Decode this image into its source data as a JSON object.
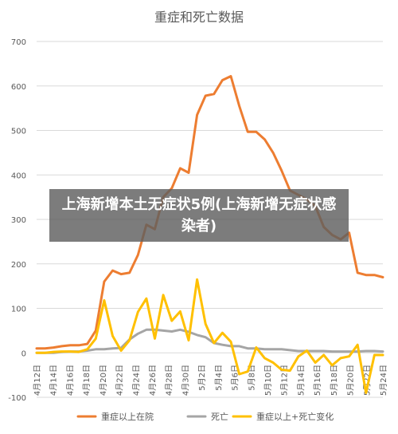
{
  "colors": {
    "hospitalized": "#ED7D31",
    "deaths": "#A5A5A5",
    "change": "#FFC000",
    "grid": "#D9D9D9",
    "text": "#595959",
    "overlay_bg": "#5F5F5F",
    "overlay_text": "#FFFFFF"
  },
  "overlay": {
    "headline": "上海新增本土无症状5例(上海新增无症状感染者)"
  },
  "chart_data": {
    "type": "line",
    "title": "重症和死亡数据",
    "ylim": [
      -100,
      700
    ],
    "yticks": [
      -100,
      0,
      100,
      200,
      300,
      400,
      500,
      600,
      700
    ],
    "ytick_labels": [
      "-100",
      "0",
      "100",
      "200",
      "300",
      "400",
      "500",
      "600",
      "700"
    ],
    "xtick_labels": [
      "4月12日",
      "4月14日",
      "4月16日",
      "4月18日",
      "4月20日",
      "4月22日",
      "4月24日",
      "4月26日",
      "4月28日",
      "4月30日",
      "5月2日",
      "5月4日",
      "5月6日",
      "5月8日",
      "5月10日",
      "5月12日",
      "5月14日",
      "5月16日",
      "5月18日",
      "5月20日",
      "5月22日",
      "5月24日"
    ],
    "grid": true,
    "legend_position": "bottom",
    "series": [
      {
        "name": "重症以上在院",
        "values": [
          10,
          10,
          12,
          15,
          17,
          17,
          20,
          50,
          160,
          185,
          177,
          180,
          220,
          288,
          278,
          350,
          370,
          415,
          405,
          535,
          578,
          582,
          613,
          622,
          555,
          497,
          497,
          480,
          450,
          410,
          365,
          355,
          345,
          330,
          283,
          265,
          255,
          270,
          180,
          175,
          175,
          170
        ]
      },
      {
        "name": "死亡",
        "values": [
          0,
          0,
          0,
          2,
          3,
          3,
          5,
          8,
          8,
          10,
          11,
          30,
          43,
          52,
          52,
          50,
          48,
          52,
          47,
          40,
          35,
          22,
          18,
          15,
          15,
          10,
          10,
          8,
          8,
          8,
          6,
          4,
          4,
          4,
          4,
          3,
          3,
          3,
          3,
          4,
          4,
          3
        ]
      },
      {
        "name": "重症以上+死亡变化",
        "values": [
          0,
          0,
          2,
          3,
          3,
          2,
          8,
          32,
          118,
          38,
          5,
          28,
          92,
          122,
          32,
          130,
          72,
          93,
          28,
          165,
          65,
          22,
          45,
          25,
          -48,
          -42,
          12,
          -12,
          -22,
          -38,
          -40,
          -8,
          5,
          -22,
          -5,
          -28,
          -12,
          -8,
          18,
          -90,
          -5,
          -5
        ]
      }
    ]
  }
}
